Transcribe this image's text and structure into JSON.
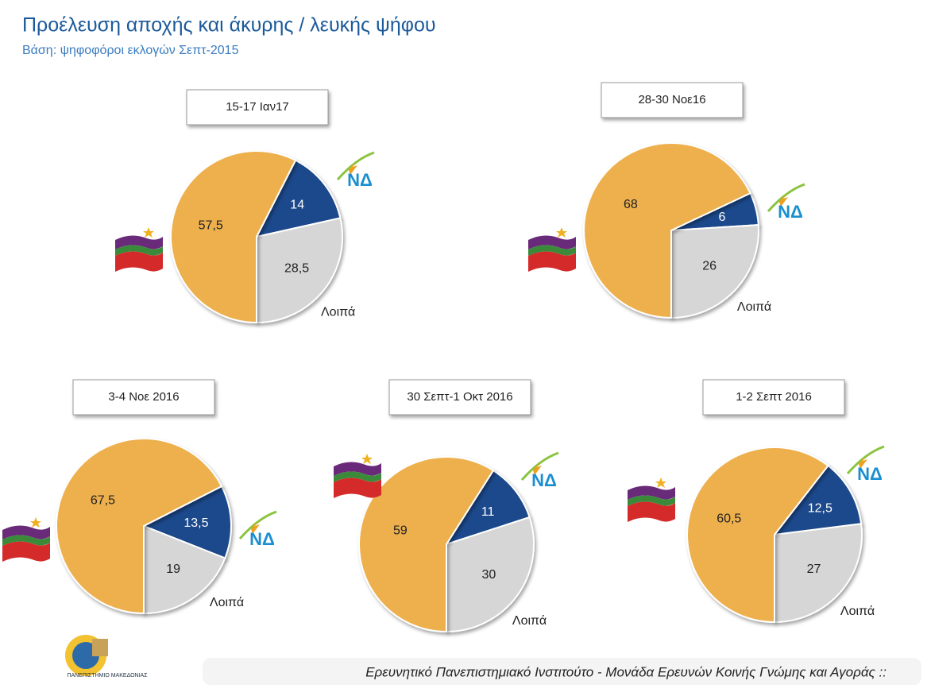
{
  "title": "Προέλευση αποχής και άκυρης / λευκής ψήφου",
  "subtitle": "Βάση: ψηφοφόροι εκλογών Σεπτ-2015",
  "footer": "Ερευνητικό Πανεπιστημιακό Ινστιτούτο - Μονάδα Ερευνών Κοινής Γνώμης και Αγοράς ::",
  "logo_text": "ΠΑΝΕΠΙΣΤΗΜΙΟ ΜΑΚΕΔΟΝΙΑΣ",
  "chart_data": [
    {
      "type": "pie",
      "title": "15-17 Ιαν17",
      "categories": [
        null,
        "ΝΔ",
        "Λοιπά"
      ],
      "values": [
        57.5,
        14,
        28.5
      ],
      "value_labels": [
        "57,5",
        "14",
        "28,5"
      ],
      "colors": [
        "#eeb04e",
        "#1b4a8c",
        "#d6d6d6"
      ]
    },
    {
      "type": "pie",
      "title": "28-30 Νοε16",
      "categories": [
        null,
        "ΝΔ",
        "Λοιπά"
      ],
      "values": [
        68,
        6,
        26
      ],
      "value_labels": [
        "68",
        "6",
        "26"
      ],
      "colors": [
        "#eeb04e",
        "#1b4a8c",
        "#d6d6d6"
      ]
    },
    {
      "type": "pie",
      "title": "3-4 Νοε 2016",
      "categories": [
        null,
        "ΝΔ",
        "Λοιπά"
      ],
      "values": [
        67.5,
        13.5,
        19
      ],
      "value_labels": [
        "67,5",
        "13,5",
        "19"
      ],
      "colors": [
        "#eeb04e",
        "#1b4a8c",
        "#d6d6d6"
      ]
    },
    {
      "type": "pie",
      "title": "30 Σεπτ-1 Οκτ 2016",
      "categories": [
        null,
        "ΝΔ",
        "Λοιπά"
      ],
      "values": [
        59,
        11,
        30
      ],
      "value_labels": [
        "59",
        "11",
        "30"
      ],
      "colors": [
        "#eeb04e",
        "#1b4a8c",
        "#d6d6d6"
      ]
    },
    {
      "type": "pie",
      "title": "1-2 Σεπτ 2016",
      "categories": [
        null,
        "ΝΔ",
        "Λοιπά"
      ],
      "values": [
        60.5,
        12.5,
        27
      ],
      "value_labels": [
        "60,5",
        "12,5",
        "27"
      ],
      "colors": [
        "#eeb04e",
        "#1b4a8c",
        "#d6d6d6"
      ]
    }
  ]
}
